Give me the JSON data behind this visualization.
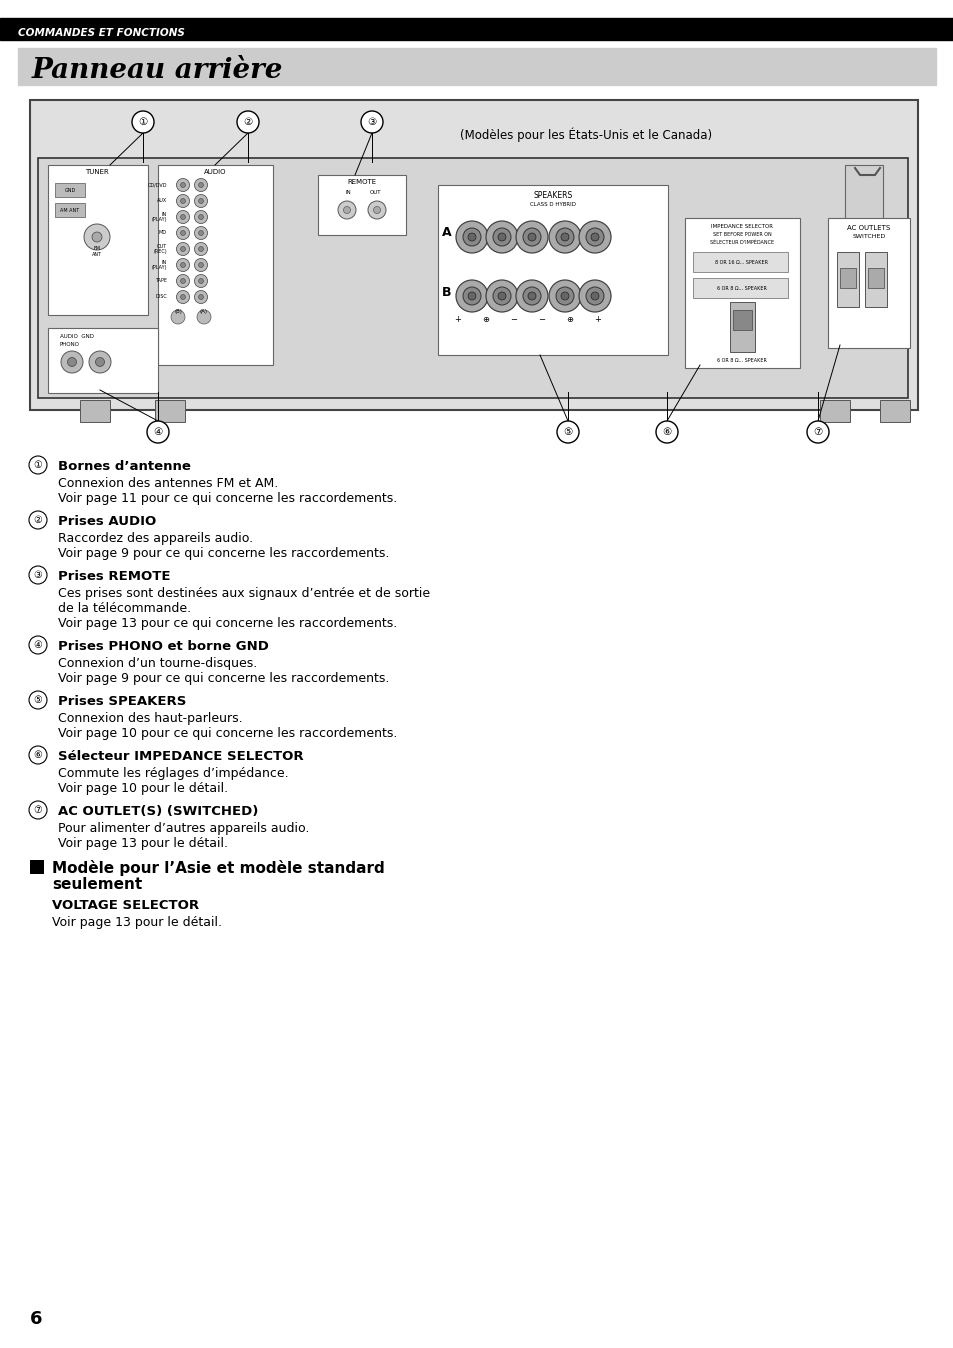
{
  "page_bg": "#ffffff",
  "top_bar_color": "#000000",
  "top_bar_text": "COMMANDES ET FONCTIONS",
  "top_bar_text_color": "#ffffff",
  "title_bg": "#cccccc",
  "title_text": "Panneau arrière",
  "title_text_color": "#000000",
  "diagram_bg": "#e8e8e8",
  "diagram_border": "#555555",
  "canada_note": "(Modèles pour les États-Unis et le Canada)",
  "items": [
    {
      "number": "①",
      "label": "Bornes d’antenne",
      "lines": [
        "Connexion des antennes FM et AM.",
        "Voir page 11 pour ce qui concerne les raccordements."
      ]
    },
    {
      "number": "②",
      "label": "Prises AUDIO",
      "lines": [
        "Raccordez des appareils audio.",
        "Voir page 9 pour ce qui concerne les raccordements."
      ]
    },
    {
      "number": "③",
      "label": "Prises REMOTE",
      "lines": [
        "Ces prises sont destinées aux signaux d’entrée et de sortie",
        "de la télécommande.",
        "Voir page 13 pour ce qui concerne les raccordements."
      ]
    },
    {
      "number": "④",
      "label": "Prises PHONO et borne GND",
      "lines": [
        "Connexion d’un tourne-disques.",
        "Voir page 9 pour ce qui concerne les raccordements."
      ]
    },
    {
      "number": "⑤",
      "label": "Prises SPEAKERS",
      "lines": [
        "Connexion des haut-parleurs.",
        "Voir page 10 pour ce qui concerne les raccordements."
      ]
    },
    {
      "number": "⑥",
      "label": "Sélecteur IMPEDANCE SELECTOR",
      "lines": [
        "Commute les réglages d’impédance.",
        "Voir page 10 pour le détail."
      ]
    },
    {
      "number": "⑦",
      "label": "AC OUTLET(S) (SWITCHED)",
      "lines": [
        "Pour alimenter d’autres appareils audio.",
        "Voir page 13 pour le détail."
      ]
    }
  ],
  "section_header_line1": "Modèle pour l’Asie et modèle standard",
  "section_header_line2": "seulement",
  "voltage_title": "VOLTAGE SELECTOR",
  "voltage_text": "Voir page 13 pour le détail.",
  "page_number": "6"
}
